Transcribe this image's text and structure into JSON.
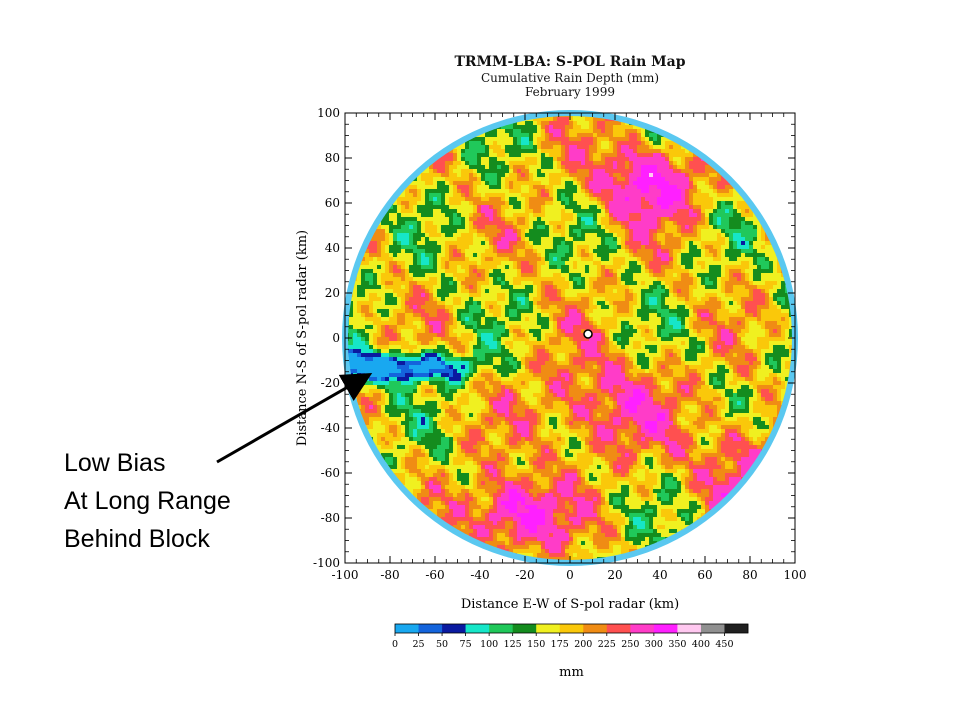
{
  "chart_data": {
    "type": "heatmap",
    "title": "TRMM-LBA: S-POL Rain Map",
    "subtitle_lines": [
      "Cumulative Rain Depth (mm)",
      "February 1999"
    ],
    "xlabel": "Distance E-W of S-pol radar (km)",
    "ylabel": "Distance N-S of S-pol radar (km)",
    "xlim": [
      -100,
      100
    ],
    "ylim": [
      -100,
      100
    ],
    "x_ticks": [
      "-100",
      "-80",
      "-60",
      "-40",
      "-20",
      "0",
      "20",
      "40",
      "60",
      "80",
      "100"
    ],
    "y_ticks": [
      "100",
      "80",
      "60",
      "40",
      "20",
      "0",
      "-20",
      "-40",
      "-60",
      "-80",
      "-100"
    ],
    "grid": false,
    "colorbar": {
      "unit_label": "mm",
      "tick_labels": [
        "0",
        "25",
        "50",
        "75",
        "100",
        "125",
        "150",
        "175",
        "200",
        "225",
        "250",
        "300",
        "350",
        "400",
        "450"
      ],
      "levels": [
        0,
        25,
        50,
        75,
        100,
        125,
        150,
        175,
        200,
        225,
        250,
        300,
        350,
        400,
        450
      ],
      "colors": [
        "#19a8f0",
        "#1464dc",
        "#0a1aa0",
        "#16e6c8",
        "#20c85a",
        "#148c1e",
        "#f0f020",
        "#fac80a",
        "#f08c14",
        "#ff5050",
        "#ff3cc8",
        "#ff20ff",
        "#ffc8f0",
        "#909090",
        "#202020"
      ]
    },
    "annotations": [
      {
        "text_lines": [
          "Low Bias",
          "At Long Range",
          "Behind Block"
        ],
        "points_to": [
          -90,
          -18
        ]
      }
    ]
  }
}
